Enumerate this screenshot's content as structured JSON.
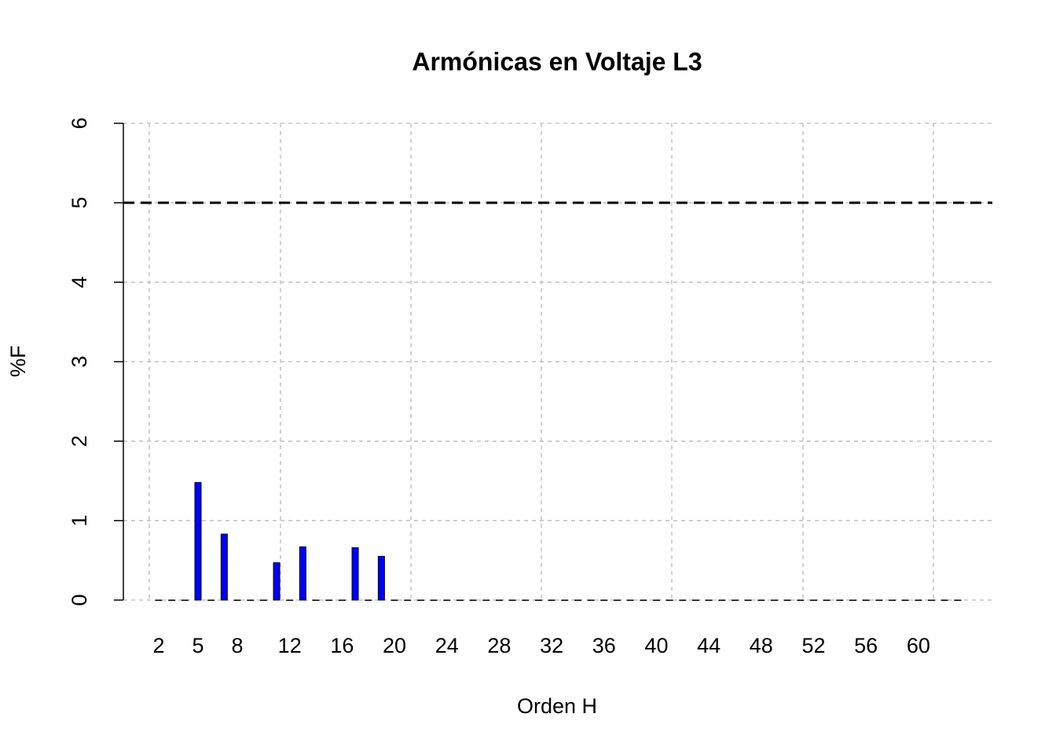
{
  "chart_data": {
    "type": "bar",
    "title": "Armónicas en Voltaje L3",
    "x_label": "Orden H",
    "y_label": "%F",
    "categories": [
      "2",
      null,
      null,
      "5",
      null,
      null,
      "8",
      null,
      null,
      null,
      "12",
      null,
      null,
      null,
      "16",
      null,
      null,
      null,
      "20",
      null,
      null,
      null,
      "24",
      null,
      null,
      null,
      "28",
      null,
      null,
      null,
      "32",
      null,
      null,
      null,
      "36",
      null,
      null,
      null,
      "40",
      null,
      null,
      null,
      "44",
      null,
      null,
      null,
      "48",
      null,
      null,
      null,
      "52",
      null,
      null,
      null,
      "56",
      null,
      null,
      null,
      "60",
      null,
      null,
      null
    ],
    "values": [
      0,
      0,
      0,
      1.48,
      0,
      0.83,
      0,
      0,
      0,
      0.47,
      0,
      0.67,
      0,
      0,
      0,
      0.66,
      0,
      0.55,
      0,
      0,
      0,
      0,
      0,
      0,
      0,
      0,
      0,
      0,
      0,
      0,
      0,
      0,
      0,
      0,
      0,
      0,
      0,
      0,
      0,
      0,
      0,
      0,
      0,
      0,
      0,
      0,
      0,
      0,
      0,
      0,
      0,
      0,
      0,
      0,
      0,
      0,
      0,
      0,
      0,
      0,
      0,
      0
    ],
    "color": "#0000ff",
    "ylim": [
      0,
      6
    ],
    "yticks": [
      0,
      1,
      2,
      3,
      4,
      5,
      6
    ],
    "grid": true,
    "reference_line": 5
  }
}
